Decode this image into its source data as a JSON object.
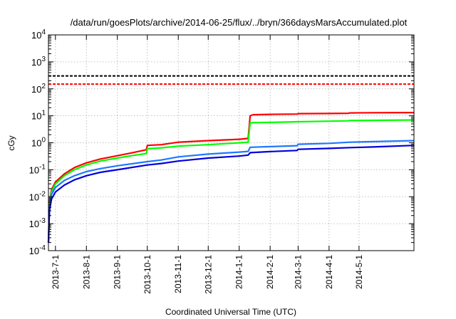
{
  "chart_data": {
    "type": "line",
    "title": "/data/run/goesPlots/archive/2014-06-25/flux/../bryn/366daysMarsAccumulated.plot",
    "xlabel": "Coordinated Universal Time (UTC)",
    "ylabel": "cGy",
    "x_range": [
      "2013-06-24",
      "2014-06-25"
    ],
    "y_scale": "log",
    "ylim": [
      0.0001,
      10000
    ],
    "grid": true,
    "legend": "none",
    "x_ticks": [
      {
        "date": "2013-07-01",
        "label": "2013-7-1"
      },
      {
        "date": "2013-08-01",
        "label": "2013-8-1"
      },
      {
        "date": "2013-09-01",
        "label": "2013-9-1"
      },
      {
        "date": "2013-10-01",
        "label": "2013-10-1"
      },
      {
        "date": "2013-11-01",
        "label": "2013-11-1"
      },
      {
        "date": "2013-12-01",
        "label": "2013-12-1"
      },
      {
        "date": "2014-01-01",
        "label": "2014-1-1"
      },
      {
        "date": "2014-02-01",
        "label": "2014-2-1"
      },
      {
        "date": "2014-03-01",
        "label": "2014-3-1"
      },
      {
        "date": "2014-04-01",
        "label": "2014-4-1"
      },
      {
        "date": "2014-05-01",
        "label": "2014-5-1"
      }
    ],
    "y_ticks": [
      {
        "value": 0.0001,
        "base": "10",
        "exp": "-4"
      },
      {
        "value": 0.001,
        "base": "10",
        "exp": "-3"
      },
      {
        "value": 0.01,
        "base": "10",
        "exp": "-2"
      },
      {
        "value": 0.1,
        "base": "10",
        "exp": "-1"
      },
      {
        "value": 1,
        "base": "10",
        "exp": "0"
      },
      {
        "value": 10,
        "base": "10",
        "exp": "1"
      },
      {
        "value": 100,
        "base": "10",
        "exp": "2"
      },
      {
        "value": 1000,
        "base": "10",
        "exp": "3"
      },
      {
        "value": 10000,
        "base": "10",
        "exp": "4"
      }
    ],
    "reference_lines": [
      {
        "y": 300,
        "color": "#000000"
      },
      {
        "y": 150,
        "color": "#ff0000"
      }
    ],
    "series": [
      {
        "color": "#ff0000",
        "points": [
          [
            "2013-06-24",
            0.0002
          ],
          [
            "2013-06-25",
            0.006
          ],
          [
            "2013-06-27",
            0.018
          ],
          [
            "2013-07-01",
            0.035
          ],
          [
            "2013-07-10",
            0.07
          ],
          [
            "2013-07-20",
            0.12
          ],
          [
            "2013-08-01",
            0.18
          ],
          [
            "2013-08-15",
            0.25
          ],
          [
            "2013-09-01",
            0.33
          ],
          [
            "2013-09-15",
            0.42
          ],
          [
            "2013-09-30",
            0.55
          ],
          [
            "2013-10-01",
            0.8
          ],
          [
            "2013-10-15",
            0.85
          ],
          [
            "2013-11-01",
            1.05
          ],
          [
            "2013-12-01",
            1.2
          ],
          [
            "2014-01-01",
            1.35
          ],
          [
            "2014-01-10",
            1.45
          ],
          [
            "2014-01-12",
            10
          ],
          [
            "2014-01-15",
            11
          ],
          [
            "2014-02-01",
            11.3
          ],
          [
            "2014-02-28",
            11.6
          ],
          [
            "2014-03-01",
            12
          ],
          [
            "2014-04-01",
            12.2
          ],
          [
            "2014-04-20",
            12.4
          ],
          [
            "2014-04-22",
            12.8
          ],
          [
            "2014-05-15",
            13
          ],
          [
            "2014-06-25",
            13.2
          ]
        ]
      },
      {
        "color": "#00ff00",
        "points": [
          [
            "2013-06-24",
            0.0002
          ],
          [
            "2013-06-25",
            0.005
          ],
          [
            "2013-06-27",
            0.015
          ],
          [
            "2013-07-01",
            0.03
          ],
          [
            "2013-07-10",
            0.06
          ],
          [
            "2013-07-20",
            0.1
          ],
          [
            "2013-08-01",
            0.15
          ],
          [
            "2013-08-15",
            0.21
          ],
          [
            "2013-09-01",
            0.27
          ],
          [
            "2013-09-15",
            0.33
          ],
          [
            "2013-09-30",
            0.4
          ],
          [
            "2013-10-01",
            0.6
          ],
          [
            "2013-10-15",
            0.65
          ],
          [
            "2013-11-01",
            0.75
          ],
          [
            "2013-12-01",
            0.85
          ],
          [
            "2014-01-01",
            1.0
          ],
          [
            "2014-01-10",
            1.05
          ],
          [
            "2014-01-12",
            5.5
          ],
          [
            "2014-01-15",
            5.6
          ],
          [
            "2014-02-01",
            5.7
          ],
          [
            "2014-03-01",
            6.0
          ],
          [
            "2014-04-01",
            6.3
          ],
          [
            "2014-04-20",
            6.5
          ],
          [
            "2014-04-22",
            6.7
          ],
          [
            "2014-05-15",
            6.8
          ],
          [
            "2014-06-25",
            7.0
          ]
        ]
      },
      {
        "color": "#1e78ff",
        "points": [
          [
            "2013-06-24",
            0.0002
          ],
          [
            "2013-06-25",
            0.004
          ],
          [
            "2013-06-27",
            0.012
          ],
          [
            "2013-07-01",
            0.022
          ],
          [
            "2013-07-10",
            0.04
          ],
          [
            "2013-07-20",
            0.06
          ],
          [
            "2013-08-01",
            0.085
          ],
          [
            "2013-08-15",
            0.11
          ],
          [
            "2013-09-01",
            0.14
          ],
          [
            "2013-10-01",
            0.2
          ],
          [
            "2013-10-15",
            0.23
          ],
          [
            "2013-11-01",
            0.3
          ],
          [
            "2013-12-01",
            0.38
          ],
          [
            "2014-01-01",
            0.45
          ],
          [
            "2014-01-10",
            0.48
          ],
          [
            "2014-01-12",
            0.68
          ],
          [
            "2014-02-01",
            0.72
          ],
          [
            "2014-02-28",
            0.78
          ],
          [
            "2014-03-01",
            0.88
          ],
          [
            "2014-04-01",
            0.95
          ],
          [
            "2014-04-22",
            1.05
          ],
          [
            "2014-05-15",
            1.1
          ],
          [
            "2014-06-25",
            1.2
          ]
        ]
      },
      {
        "color": "#0000dd",
        "points": [
          [
            "2013-06-24",
            0.0002
          ],
          [
            "2013-06-25",
            0.003
          ],
          [
            "2013-06-27",
            0.008
          ],
          [
            "2013-07-01",
            0.015
          ],
          [
            "2013-07-10",
            0.027
          ],
          [
            "2013-07-20",
            0.042
          ],
          [
            "2013-08-01",
            0.06
          ],
          [
            "2013-08-15",
            0.08
          ],
          [
            "2013-09-01",
            0.1
          ],
          [
            "2013-10-01",
            0.15
          ],
          [
            "2013-10-15",
            0.17
          ],
          [
            "2013-11-01",
            0.21
          ],
          [
            "2013-12-01",
            0.27
          ],
          [
            "2014-01-01",
            0.32
          ],
          [
            "2014-01-10",
            0.35
          ],
          [
            "2014-01-12",
            0.43
          ],
          [
            "2014-02-01",
            0.47
          ],
          [
            "2014-02-28",
            0.52
          ],
          [
            "2014-03-01",
            0.57
          ],
          [
            "2014-04-01",
            0.62
          ],
          [
            "2014-04-22",
            0.66
          ],
          [
            "2014-05-15",
            0.7
          ],
          [
            "2014-06-25",
            0.8
          ]
        ]
      }
    ]
  }
}
